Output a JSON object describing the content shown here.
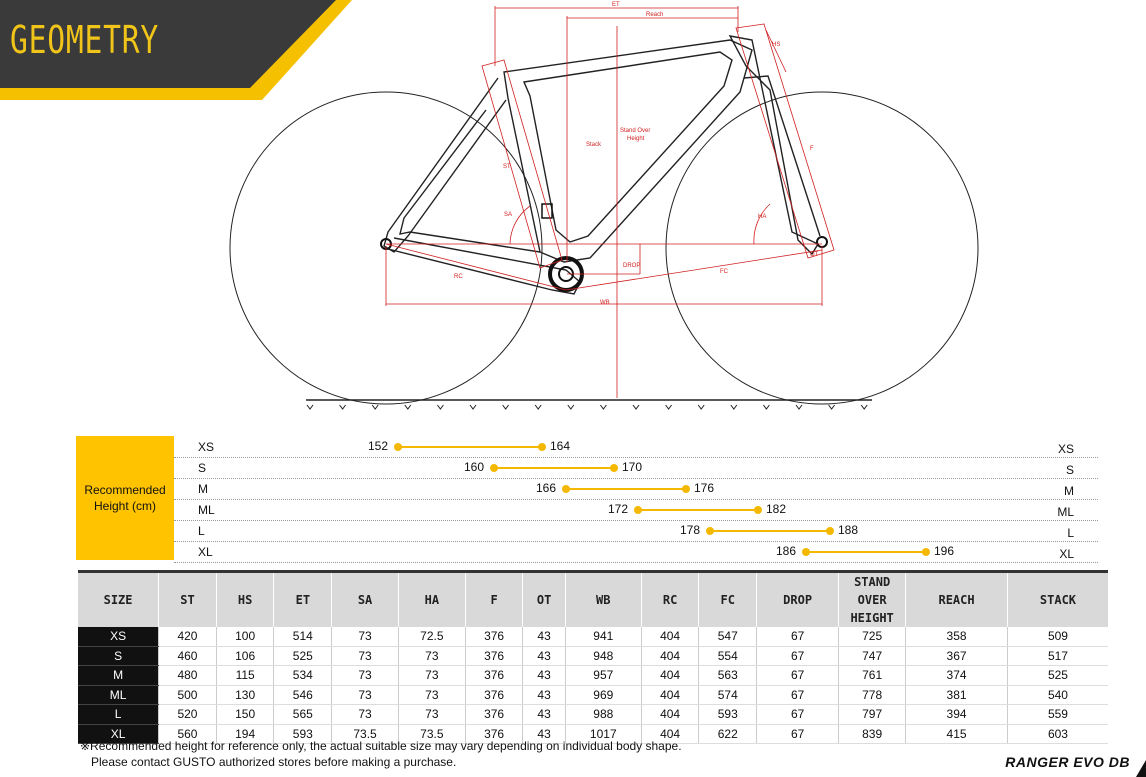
{
  "header": {
    "title": "GEOMETRY"
  },
  "diagram_labels": {
    "et": "ET",
    "reach": "Reach",
    "hs": "HS",
    "stack": "Stack",
    "stand_over": "Stand Over",
    "height": "Height",
    "st": "ST",
    "sa": "SA",
    "f": "F",
    "ha": "HA",
    "ot": "OT",
    "drop": "DROP",
    "rc": "RC",
    "fc": "FC",
    "wb": "WB"
  },
  "recommended": {
    "label_line1": "Recommended",
    "label_line2": "Height (cm)",
    "scale_min": 140,
    "scale_max": 200,
    "rows": [
      {
        "size": "XS",
        "min": "152",
        "max": "164"
      },
      {
        "size": "S",
        "min": "160",
        "max": "170"
      },
      {
        "size": "M",
        "min": "166",
        "max": "176"
      },
      {
        "size": "ML",
        "min": "172",
        "max": "182"
      },
      {
        "size": "L",
        "min": "178",
        "max": "188"
      },
      {
        "size": "XL",
        "min": "186",
        "max": "196"
      }
    ]
  },
  "table": {
    "headers": [
      "SIZE",
      "ST",
      "HS",
      "ET",
      "SA",
      "HA",
      "F",
      "OT",
      "WB",
      "RC",
      "FC",
      "DROP",
      "STAND OVER HEIGHT",
      "REACH",
      "STACK"
    ],
    "rows": [
      [
        "XS",
        "420",
        "100",
        "514",
        "73",
        "72.5",
        "376",
        "43",
        "941",
        "404",
        "547",
        "67",
        "725",
        "358",
        "509"
      ],
      [
        "S",
        "460",
        "106",
        "525",
        "73",
        "73",
        "376",
        "43",
        "948",
        "404",
        "554",
        "67",
        "747",
        "367",
        "517"
      ],
      [
        "M",
        "480",
        "115",
        "534",
        "73",
        "73",
        "376",
        "43",
        "957",
        "404",
        "563",
        "67",
        "761",
        "374",
        "525"
      ],
      [
        "ML",
        "500",
        "130",
        "546",
        "73",
        "73",
        "376",
        "43",
        "969",
        "404",
        "574",
        "67",
        "778",
        "381",
        "540"
      ],
      [
        "L",
        "520",
        "150",
        "565",
        "73",
        "73",
        "376",
        "43",
        "988",
        "404",
        "593",
        "67",
        "797",
        "394",
        "559"
      ],
      [
        "XL",
        "560",
        "194",
        "593",
        "73.5",
        "73.5",
        "376",
        "43",
        "1017",
        "404",
        "622",
        "67",
        "839",
        "415",
        "603"
      ]
    ]
  },
  "footnote": {
    "line1": "※Recommended height for reference only,  the actual suitable size may vary depending on individual body shape.",
    "line2": "Please contact GUSTO authorized stores before making a purchase."
  },
  "model": "RANGER EVO DB",
  "colors": {
    "accent": "#f5c000",
    "dark": "#3a3a3a",
    "dim_line": "#d01f1f"
  }
}
